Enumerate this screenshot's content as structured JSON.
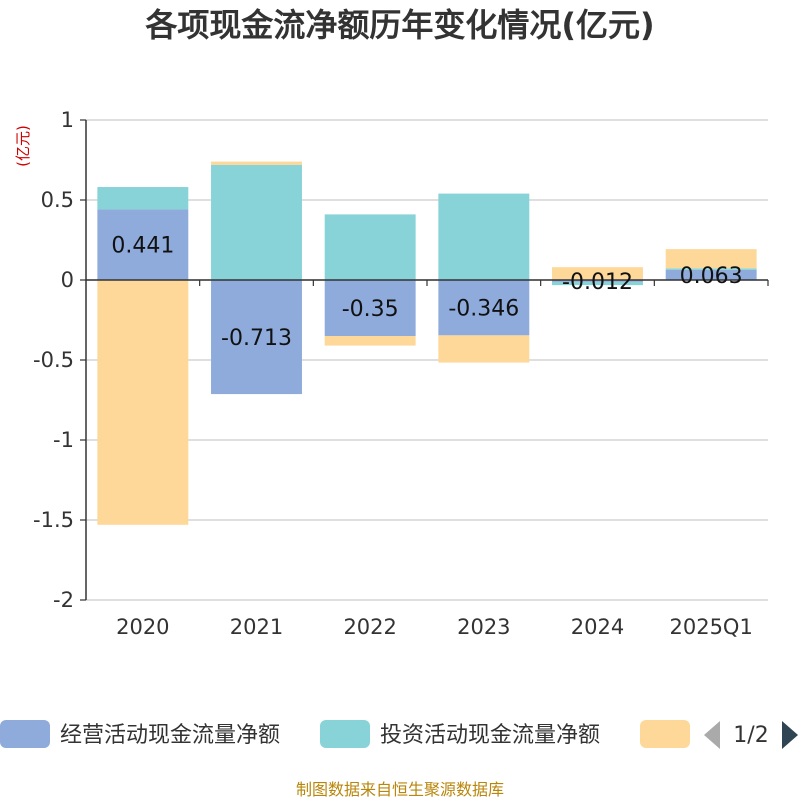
{
  "title": "各项现金流净额历年变化情况(亿元)",
  "unit_label": "(亿元)",
  "source": "制图数据来自恒生聚源数据库",
  "legend": {
    "items": [
      {
        "name": "经营活动现金流量净额",
        "color": "#8eabdc"
      },
      {
        "name": "投资活动现金流量净额",
        "color": "#88d3d8"
      },
      {
        "name": "",
        "color": "#fed899"
      }
    ],
    "page": "1/2"
  },
  "chart_data": {
    "type": "bar",
    "stacked": true,
    "categories": [
      "2020",
      "2021",
      "2022",
      "2023",
      "2024",
      "2025Q1"
    ],
    "series": [
      {
        "name": "经营活动现金流量净额",
        "color": "#8eabdc",
        "values": [
          0.441,
          -0.713,
          -0.35,
          -0.346,
          -0.012,
          0.063
        ],
        "labels": [
          "0.441",
          "-0.713",
          "-0.35",
          "-0.346",
          "-0.012",
          "0.063"
        ]
      },
      {
        "name": "投资活动现金流量净额",
        "color": "#88d3d8",
        "values": [
          0.14,
          0.72,
          0.41,
          0.54,
          -0.02,
          0.01
        ]
      },
      {
        "values": [
          -1.53,
          0.02,
          -0.06,
          -0.17,
          0.08,
          0.12
        ],
        "color": "#fed899"
      }
    ],
    "yticks": [
      1,
      0.5,
      0,
      -0.5,
      -1,
      -1.5,
      -2
    ],
    "ytick_labels": [
      "1",
      "0.5",
      "0",
      "-0.5",
      "-1",
      "-1.5",
      "-2"
    ],
    "ylim": [
      -2,
      1
    ],
    "grid": true
  }
}
